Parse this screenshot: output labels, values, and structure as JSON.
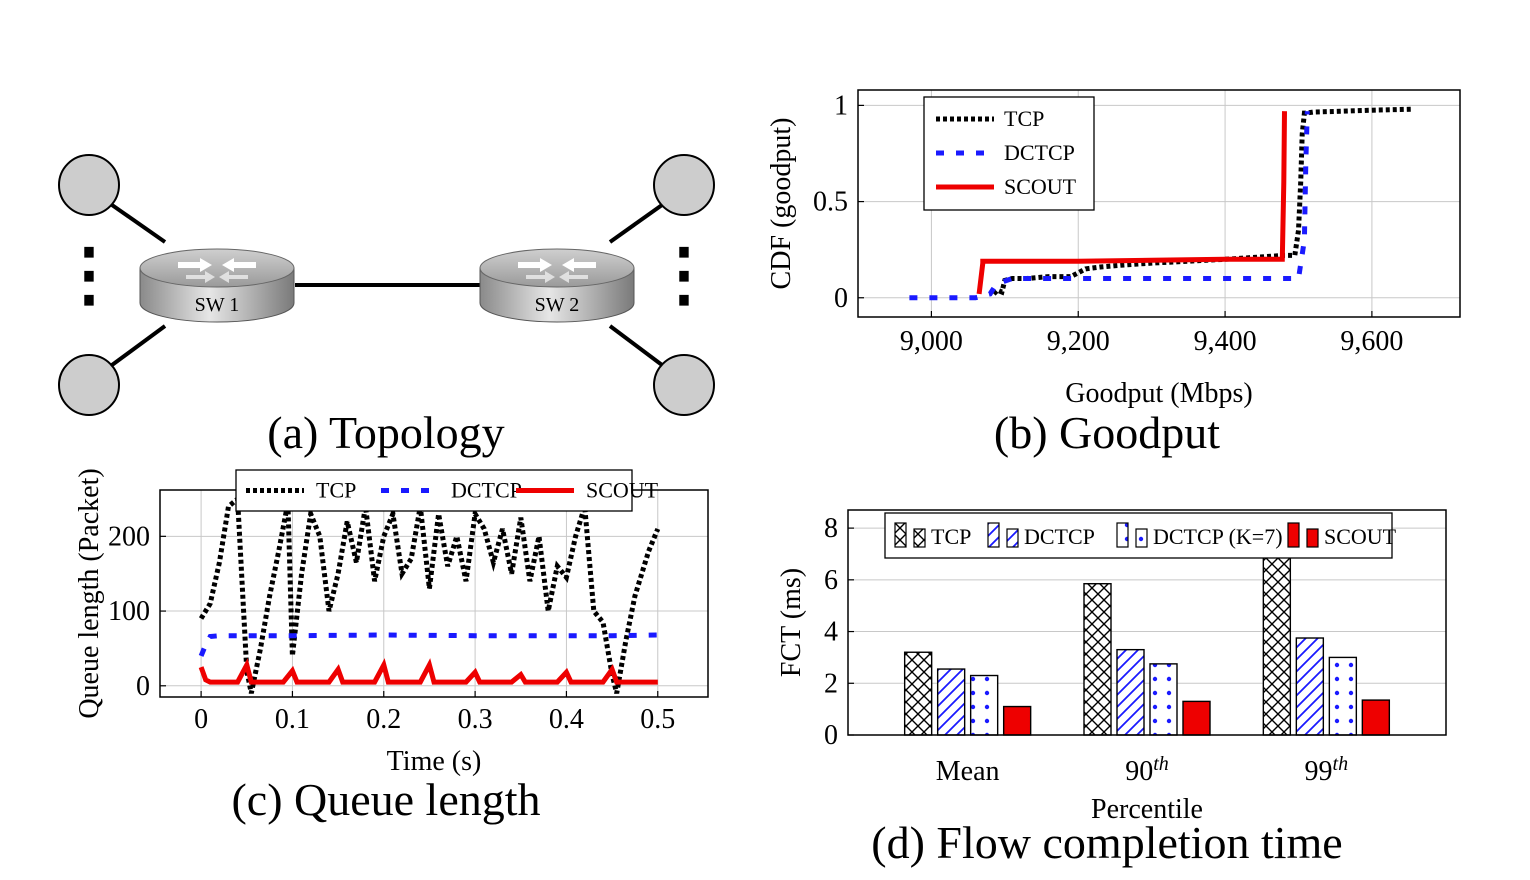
{
  "topology": {
    "caption": "(a) Topology",
    "switches": [
      "SW 1",
      "SW 2"
    ],
    "ellipsis": "⋮"
  },
  "chart_data": [
    {
      "id": "goodput",
      "type": "line",
      "caption": "(b) Goodput",
      "xlabel": "Goodput (Mbps)",
      "ylabel": "CDF (goodput)",
      "xlim": [
        8900,
        9720
      ],
      "ylim": [
        -0.1,
        1.08
      ],
      "xticks": [
        9000,
        9200,
        9400,
        9600
      ],
      "xtick_labels": [
        "9,000",
        "9,200",
        "9,400",
        "9,600"
      ],
      "yticks": [
        0,
        0.5,
        1
      ],
      "ytick_labels": [
        "0",
        "0.5",
        "1"
      ],
      "grid": true,
      "legend_position": "top-left",
      "series": [
        {
          "name": "TCP",
          "color": "#000000",
          "style": "dotted",
          "x": [
            9085,
            9090,
            9096,
            9100,
            9110,
            9130,
            9160,
            9190,
            9210,
            9230,
            9260,
            9300,
            9350,
            9400,
            9440,
            9480,
            9495,
            9500,
            9503,
            9505,
            9508,
            9510,
            9520,
            9560,
            9600,
            9655
          ],
          "y": [
            0.02,
            0.04,
            0.03,
            0.09,
            0.1,
            0.1,
            0.11,
            0.11,
            0.15,
            0.16,
            0.17,
            0.18,
            0.19,
            0.2,
            0.21,
            0.22,
            0.22,
            0.35,
            0.6,
            0.85,
            0.96,
            0.96,
            0.965,
            0.97,
            0.975,
            0.98
          ]
        },
        {
          "name": "DCTCP",
          "color": "#1a1aff",
          "style": "dashed",
          "x": [
            8970,
            9060,
            9080,
            9085,
            9095,
            9110,
            9200,
            9300,
            9400,
            9500,
            9508,
            9510,
            9512
          ],
          "y": [
            0.0,
            0.0,
            0.02,
            0.05,
            0.08,
            0.1,
            0.1,
            0.1,
            0.1,
            0.1,
            0.3,
            0.7,
            0.97
          ]
        },
        {
          "name": "SCOUT",
          "color": "#ee0000",
          "style": "solid",
          "x": [
            9065,
            9070,
            9070,
            9200,
            9300,
            9400,
            9478,
            9480,
            9481
          ],
          "y": [
            0.02,
            0.18,
            0.19,
            0.19,
            0.195,
            0.2,
            0.2,
            0.6,
            0.97
          ]
        }
      ]
    },
    {
      "id": "queue",
      "type": "line",
      "caption": "(c) Queue length",
      "xlabel": "Time (s)",
      "ylabel": "Queue length (Packet)",
      "xlim": [
        -0.045,
        0.555
      ],
      "ylim": [
        -15,
        262
      ],
      "xticks": [
        0,
        0.1,
        0.2,
        0.3,
        0.4,
        0.5
      ],
      "xtick_labels": [
        "0",
        "0.1",
        "0.2",
        "0.3",
        "0.4",
        "0.5"
      ],
      "yticks": [
        0,
        100,
        200
      ],
      "ytick_labels": [
        "0",
        "100",
        "200"
      ],
      "grid": true,
      "legend_position": "top",
      "series": [
        {
          "name": "TCP",
          "color": "#000000",
          "style": "dotted",
          "x": [
            0.0,
            0.01,
            0.02,
            0.03,
            0.04,
            0.05,
            0.055,
            0.065,
            0.075,
            0.085,
            0.095,
            0.1,
            0.11,
            0.12,
            0.13,
            0.14,
            0.15,
            0.16,
            0.17,
            0.18,
            0.19,
            0.2,
            0.21,
            0.22,
            0.23,
            0.24,
            0.25,
            0.26,
            0.27,
            0.28,
            0.29,
            0.3,
            0.31,
            0.32,
            0.33,
            0.34,
            0.35,
            0.36,
            0.37,
            0.38,
            0.39,
            0.4,
            0.41,
            0.42,
            0.43,
            0.44,
            0.45,
            0.455,
            0.465,
            0.475,
            0.49,
            0.5
          ],
          "y": [
            90,
            110,
            165,
            240,
            250,
            20,
            -10,
            50,
            120,
            180,
            245,
            40,
            150,
            230,
            200,
            100,
            150,
            220,
            165,
            240,
            140,
            200,
            230,
            150,
            170,
            240,
            130,
            230,
            160,
            200,
            140,
            230,
            210,
            165,
            210,
            150,
            225,
            140,
            200,
            100,
            160,
            145,
            200,
            240,
            100,
            85,
            15,
            -10,
            60,
            120,
            180,
            210
          ]
        },
        {
          "name": "DCTCP",
          "color": "#1a1aff",
          "style": "dashed",
          "x": [
            0.0,
            0.005,
            0.01,
            0.02,
            0.1,
            0.2,
            0.3,
            0.4,
            0.45,
            0.5
          ],
          "y": [
            40,
            55,
            66,
            67,
            67,
            68,
            67,
            67,
            67,
            68
          ]
        },
        {
          "name": "SCOUT",
          "color": "#ee0000",
          "style": "solid",
          "x": [
            0.0,
            0.005,
            0.01,
            0.02,
            0.04,
            0.05,
            0.055,
            0.06,
            0.09,
            0.1,
            0.105,
            0.14,
            0.15,
            0.155,
            0.19,
            0.2,
            0.205,
            0.24,
            0.25,
            0.255,
            0.29,
            0.3,
            0.305,
            0.34,
            0.35,
            0.355,
            0.39,
            0.4,
            0.405,
            0.44,
            0.45,
            0.455,
            0.5
          ],
          "y": [
            25,
            8,
            5,
            5,
            5,
            28,
            5,
            5,
            5,
            20,
            5,
            5,
            22,
            5,
            5,
            28,
            5,
            5,
            28,
            5,
            5,
            18,
            5,
            5,
            15,
            5,
            5,
            18,
            5,
            5,
            22,
            5,
            5
          ]
        }
      ]
    },
    {
      "id": "fct",
      "type": "bar",
      "caption": "(d) Flow completion time",
      "xlabel": "Percentile",
      "ylabel": "FCT (ms)",
      "ylim": [
        0,
        8.7
      ],
      "yticks": [
        0,
        2,
        4,
        6,
        8
      ],
      "ytick_labels": [
        "0",
        "2",
        "4",
        "6",
        "8"
      ],
      "categories": [
        "Mean",
        "90",
        "99"
      ],
      "category_superscripts": [
        "",
        "th",
        "th"
      ],
      "grid": true,
      "legend_position": "top",
      "series": [
        {
          "name": "TCP",
          "color": "#000000",
          "pattern": "crosshatch",
          "values": [
            3.2,
            5.85,
            7.6
          ]
        },
        {
          "name": "DCTCP",
          "color": "#1a1aff",
          "pattern": "diagonal",
          "values": [
            2.55,
            3.3,
            3.75
          ]
        },
        {
          "name": "DCTCP (K=7)",
          "color": "#1a1aff",
          "pattern": "dots",
          "values": [
            2.3,
            2.75,
            3.0
          ]
        },
        {
          "name": "SCOUT",
          "color": "#ee0000",
          "pattern": "solid",
          "values": [
            1.1,
            1.3,
            1.35
          ]
        }
      ]
    }
  ]
}
